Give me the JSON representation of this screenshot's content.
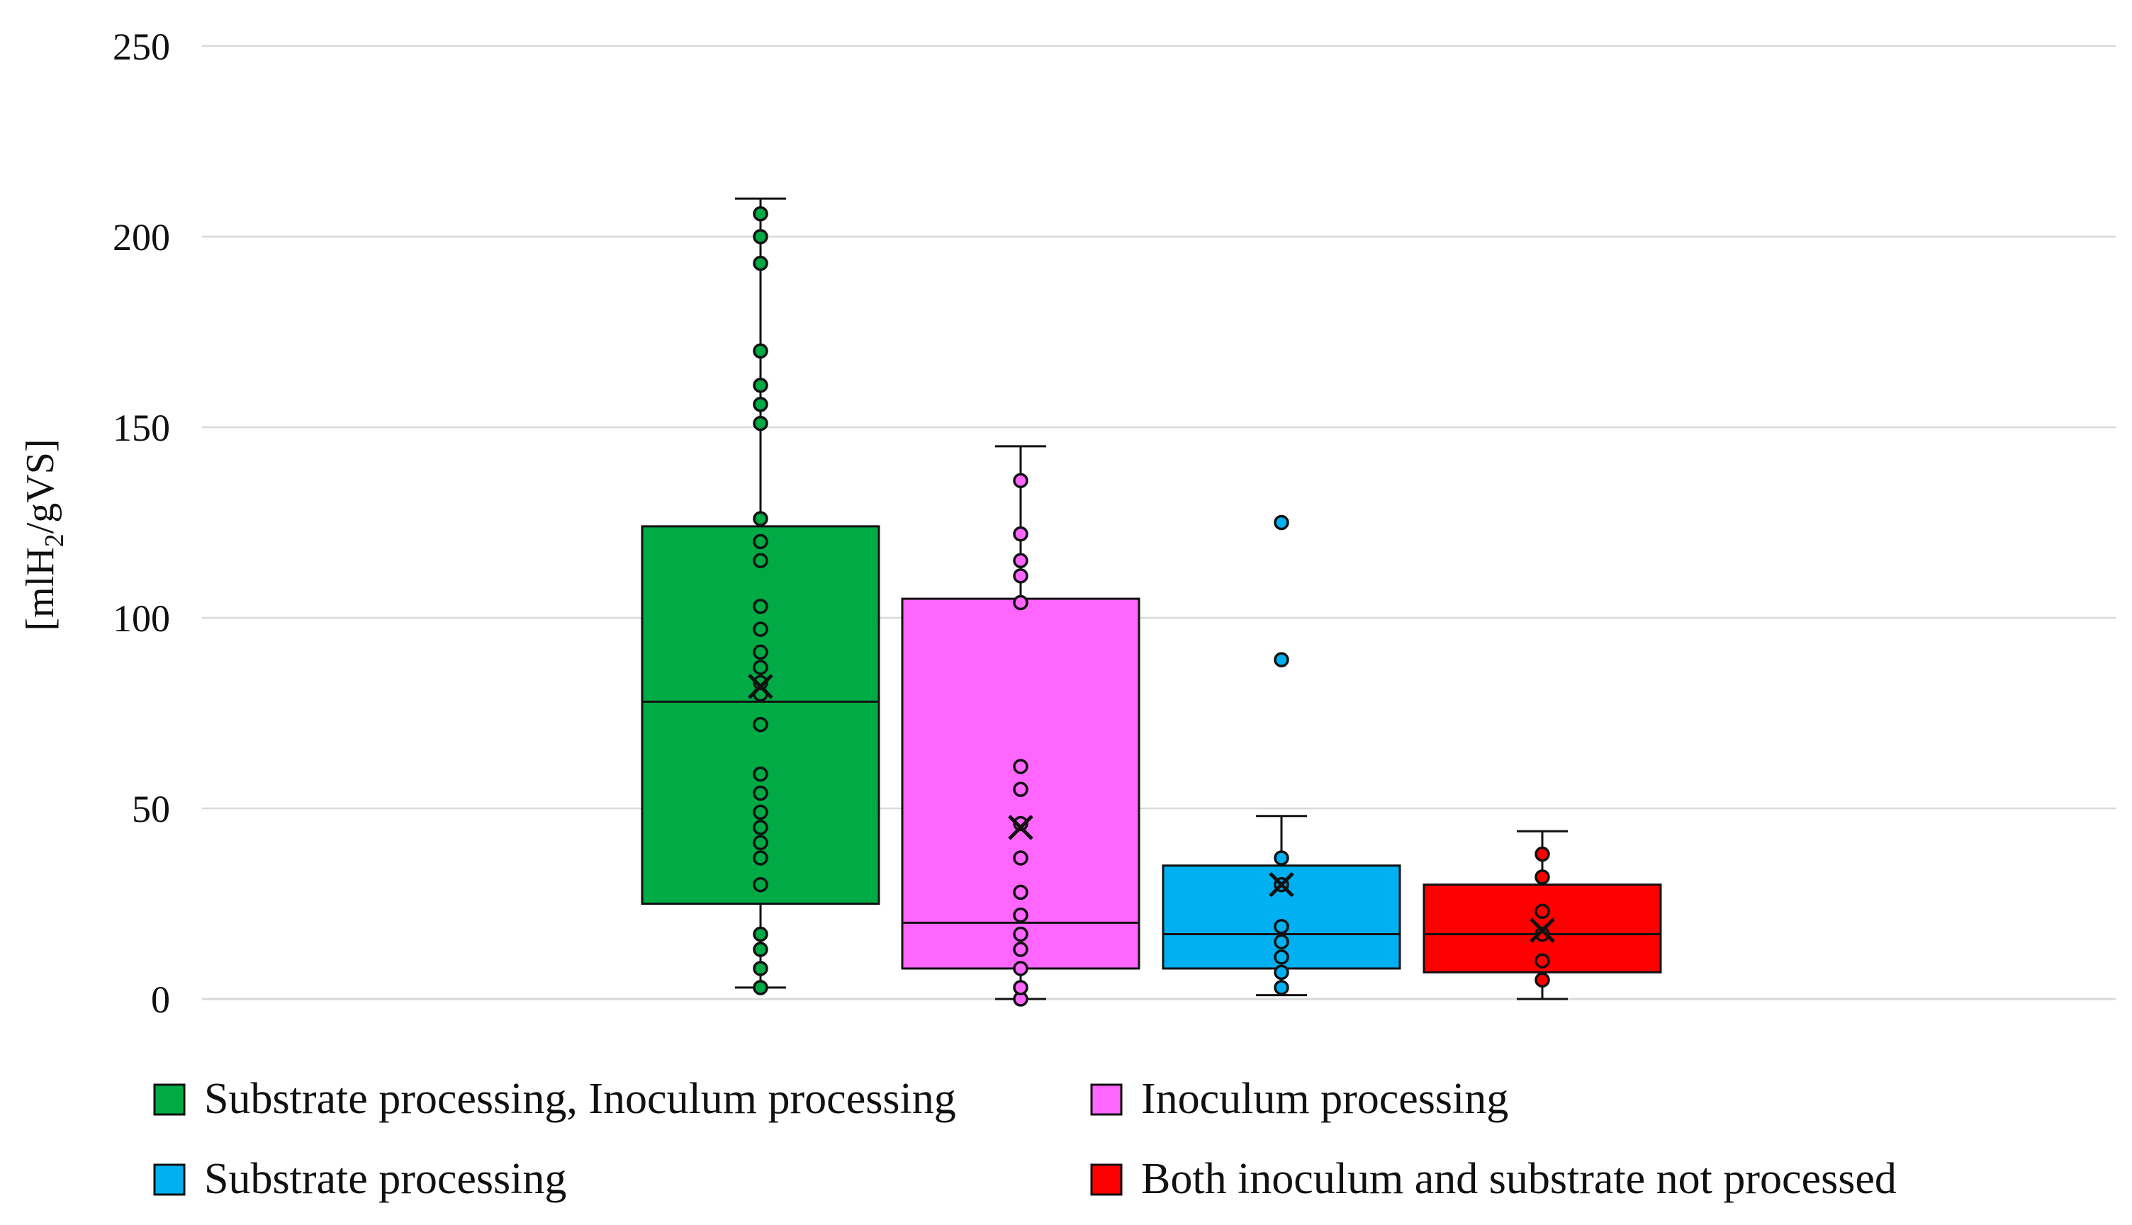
{
  "chart_data": {
    "type": "boxplot",
    "title": "",
    "xlabel": "",
    "ylabel": "[mlH2/gVS]",
    "ylabel_parts": {
      "main": "[mlH",
      "sub": "2",
      "tail": "/gVS]"
    },
    "ylim": [
      0,
      250
    ],
    "yticks": [
      0,
      50,
      100,
      150,
      200,
      250
    ],
    "grid": true,
    "legend_position": "bottom",
    "series": [
      {
        "name": "Substrate processing, Inoculum processing",
        "color": "#00AA44",
        "whisker_low": 3,
        "q1": 25,
        "median": 78,
        "q3": 124,
        "whisker_high": 210,
        "mean": 82,
        "points": [
          3,
          8,
          13,
          17,
          30,
          37,
          41,
          45,
          49,
          54,
          59,
          72,
          80,
          83,
          87,
          91,
          97,
          103,
          115,
          120,
          126,
          151,
          156,
          161,
          170,
          193,
          200,
          206
        ],
        "outliers": []
      },
      {
        "name": "Inoculum processing",
        "color": "#FF66FF",
        "whisker_low": 0,
        "q1": 8,
        "median": 20,
        "q3": 105,
        "whisker_high": 145,
        "mean": 45,
        "points": [
          0,
          3,
          8,
          13,
          17,
          22,
          28,
          37,
          46,
          55,
          61,
          104,
          111,
          115,
          122,
          136
        ],
        "outliers": []
      },
      {
        "name": "Substrate processing",
        "color": "#00B0F0",
        "whisker_low": 1,
        "q1": 8,
        "median": 17,
        "q3": 35,
        "whisker_high": 48,
        "mean": 30,
        "points": [
          3,
          7,
          11,
          15,
          19,
          30,
          37
        ],
        "outliers": [
          89,
          125
        ]
      },
      {
        "name": "Both inoculum and substrate not processed",
        "color": "#FF0000",
        "whisker_low": 0,
        "q1": 7,
        "median": 17,
        "q3": 30,
        "whisker_high": 44,
        "mean": 18,
        "points": [
          5,
          10,
          17,
          23,
          32,
          38
        ],
        "outliers": []
      }
    ]
  }
}
